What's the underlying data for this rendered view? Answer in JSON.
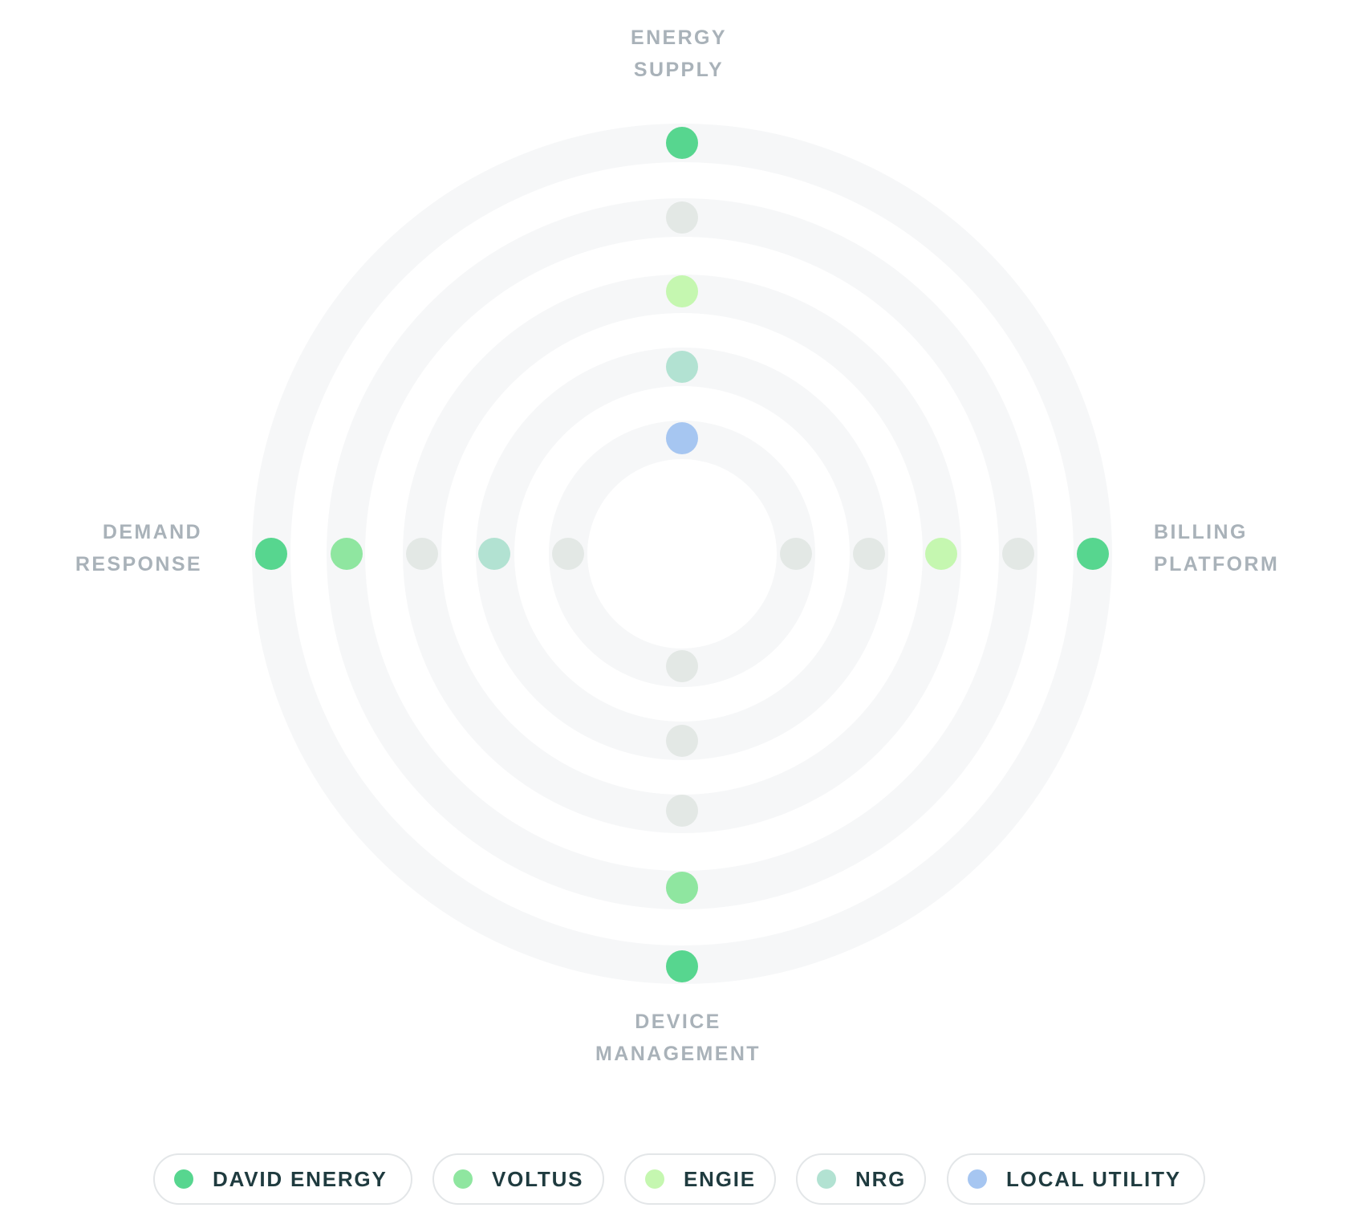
{
  "axes": {
    "top": {
      "lines": [
        "ENERGY",
        "SUPPLY"
      ]
    },
    "right": {
      "lines": [
        "BILLING",
        "PLATFORM"
      ]
    },
    "bottom": {
      "lines": [
        "DEVICE",
        "MANAGEMENT"
      ]
    },
    "left": {
      "lines": [
        "DEMAND",
        "RESPONSE"
      ]
    }
  },
  "colors": {
    "ring": "#f6f7f8",
    "empty_dot": "#e3e8e5",
    "label": "#a9b2b9"
  },
  "rings": 5,
  "legend": [
    {
      "id": "david-energy",
      "label": "DAVID ENERGY",
      "color": "#57d68f"
    },
    {
      "id": "voltus",
      "label": "VOLTUS",
      "color": "#8fe6a0"
    },
    {
      "id": "engie",
      "label": "ENGIE",
      "color": "#c5f7b0"
    },
    {
      "id": "nrg",
      "label": "NRG",
      "color": "#b2e2d2"
    },
    {
      "id": "local-utility",
      "label": "LOCAL UTILITY",
      "color": "#a6c6f1"
    }
  ],
  "placements": {
    "top": [
      "local-utility",
      "nrg",
      "engie",
      null,
      "david-energy"
    ],
    "right": [
      null,
      null,
      "engie",
      null,
      "david-energy"
    ],
    "bottom": [
      null,
      null,
      null,
      "voltus",
      "david-energy"
    ],
    "left": [
      null,
      "nrg",
      null,
      "voltus",
      "david-energy"
    ]
  }
}
